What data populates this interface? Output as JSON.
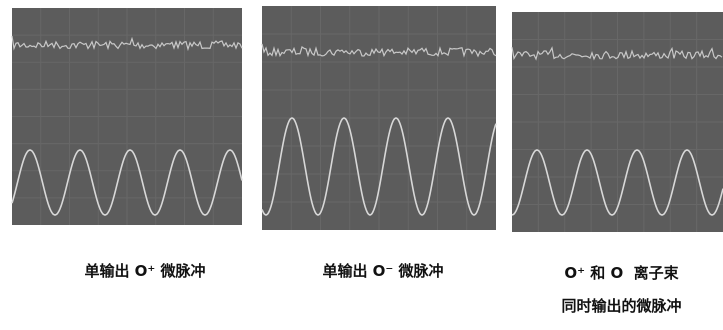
{
  "panels": [
    {
      "caption_lines": [
        "单输出 O⁺ 微脉冲"
      ]
    },
    {
      "caption_lines": [
        "单输出 O⁻ 微脉冲"
      ]
    },
    {
      "caption_lines": [
        "O⁺ 和 O  离子束",
        "同时输出的微脉冲"
      ]
    }
  ]
}
